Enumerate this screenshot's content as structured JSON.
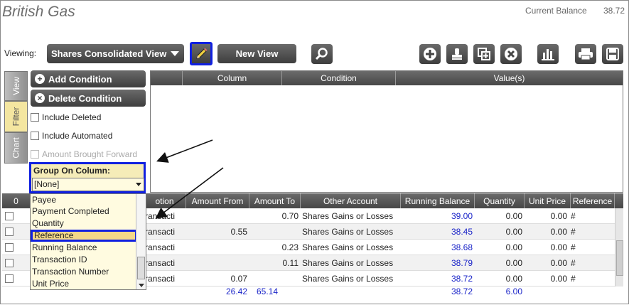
{
  "app": {
    "title": "British Gas",
    "current_balance_label": "Current Balance",
    "current_balance_value": "38.72"
  },
  "toolbar": {
    "viewing_label": "Viewing:",
    "view_select": "Shares Consolidated View",
    "new_view": "New View",
    "icons": [
      "pencil-icon",
      "search-icon",
      "add-icon",
      "stamp-icon",
      "copy-icon",
      "delete-icon",
      "bar-chart-icon",
      "print-icon",
      "save-icon"
    ]
  },
  "side_tabs": [
    "View",
    "Filter",
    "Chart"
  ],
  "filter": {
    "add_condition": "Add Condition",
    "delete_condition": "Delete Condition",
    "include_deleted": "Include Deleted",
    "include_automated": "Include Automated",
    "amount_brought_forward": "Amount Brought Forward",
    "group_on_label": "Group On Column:",
    "group_on_value": "[None]"
  },
  "condition_grid": {
    "headers": [
      "Column",
      "Condition",
      "Value(s)"
    ]
  },
  "dropdown_options": [
    "Payee",
    "Payment Completed",
    "Quantity",
    "Reference",
    "Running Balance",
    "Transaction ID",
    "Transaction Number",
    "Unit Price"
  ],
  "grid": {
    "headers": [
      "0",
      "otion",
      "Amount From",
      "Amount To",
      "Other Account",
      "Running Balance",
      "Quantity",
      "Unit Price",
      "Reference"
    ],
    "rows": [
      {
        "desc": "ransacti",
        "from": "",
        "to": "0.70",
        "account": "Shares Gains or Losses",
        "balance": "39.00",
        "qty": "0.00",
        "price": "0.00",
        "ref": "#"
      },
      {
        "desc": "ransacti",
        "from": "0.55",
        "to": "",
        "account": "Shares Gains or Losses",
        "balance": "38.45",
        "qty": "0.00",
        "price": "0.00",
        "ref": "#"
      },
      {
        "desc": "ransacti",
        "from": "",
        "to": "0.23",
        "account": "Shares Gains or Losses",
        "balance": "38.68",
        "qty": "0.00",
        "price": "0.00",
        "ref": "#"
      },
      {
        "desc": "ransacti",
        "from": "",
        "to": "0.11",
        "account": "Shares Gains or Losses",
        "balance": "38.79",
        "qty": "0.00",
        "price": "0.00",
        "ref": "#"
      },
      {
        "desc": "ransacti",
        "from": "0.07",
        "to": "",
        "account": "Shares Gains or Losses",
        "balance": "38.72",
        "qty": "0.00",
        "price": "0.00",
        "ref": "#"
      }
    ],
    "totals": {
      "from": "26.42",
      "to": "65.14",
      "balance": "38.72",
      "qty": "6.00"
    }
  }
}
